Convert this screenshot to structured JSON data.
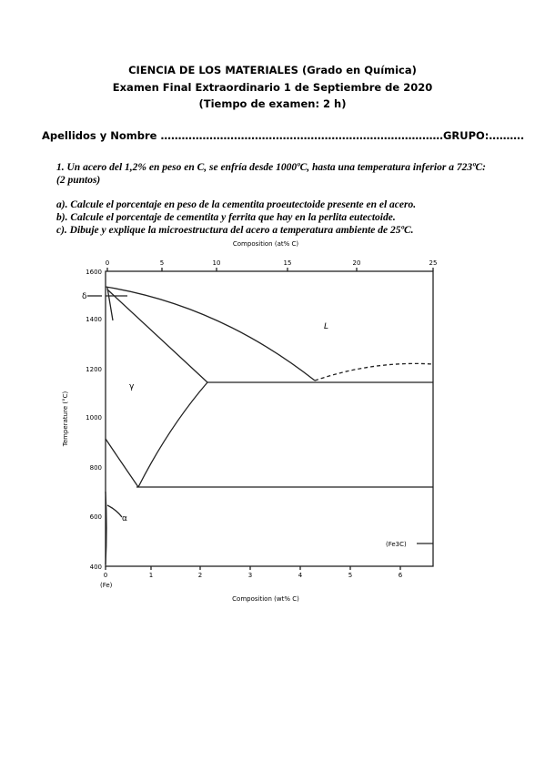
{
  "header": {
    "line1": "CIENCIA DE LOS MATERIALES (Grado en Química)",
    "line2": "Examen Final Extraordinario 1 de Septiembre de 2020",
    "line3": "(Tiempo de examen: 2 h)"
  },
  "name_line": "Apellidos y Nombre ………………………………………………………………………GRUPO:……….",
  "question": {
    "text": "1. Un acero del 1,2% en peso en C, se enfría desde 1000ºC, hasta una temperatura  inferior a 723ºC: (2 puntos)",
    "items": [
      "a). Calcule el porcentaje en peso de la cementita proeutectoide presente en el acero.",
      "b). Calcule el porcentaje de cementita y ferrita que hay en la perlita eutectoide.",
      "c). Dibuje y explique la microestructura del acero a temperatura ambiente de 25ºC."
    ]
  },
  "figure": {
    "top_axis_label": "Composition (at% C)",
    "bottom_axis_label": "Composition (wt% C)",
    "left_axis_label": "Temperature (°C)",
    "top_ticks": [
      "0",
      "5",
      "10",
      "15",
      "20",
      "25"
    ],
    "bottom_ticks": [
      "0",
      "1",
      "2",
      "3",
      "4",
      "5",
      "6"
    ],
    "left_ticks": [
      "1600",
      "1400",
      "1200",
      "1000",
      "800",
      "600",
      "400"
    ],
    "fe_label": "(Fe)",
    "fe3c_label": "(Fe3C)",
    "phase_labels": {
      "liquid": "L",
      "gamma": "γ",
      "alpha": "α",
      "delta": "δ"
    }
  }
}
